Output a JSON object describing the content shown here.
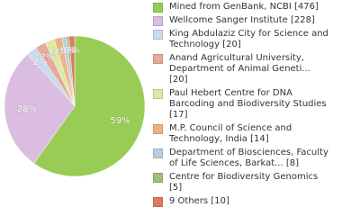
{
  "chart_data": {
    "type": "pie",
    "categories": [
      "Mined from GenBank, NCBI [476]",
      "Wellcome Sanger Institute [228]",
      "King Abdulaziz City for Science and Technology [20]",
      "Anand Agricultural University, Department of Animal Geneti... [20]",
      "Paul Hebert Centre for DNA Barcoding and Biodiversity Studies [17]",
      "M.P. Council of Science and Technology, India [14]",
      "Department of Biosciences, Faculty of Life Sciences, Barkat... [8]",
      "Centre for Biodiversity Genomics [5]",
      "9 Others [10]"
    ],
    "values": [
      59,
      28,
      2.4,
      2.4,
      2.1,
      1.8,
      1.0,
      0.6,
      1.3
    ],
    "value_labels": [
      "59%",
      "28%",
      "2%",
      "2%",
      "2%",
      "2%",
      "1%",
      "1%",
      "1%"
    ],
    "colors": [
      "#99cc55",
      "#dcbde2",
      "#c9dbec",
      "#e6a99c",
      "#dde8a2",
      "#f0b183",
      "#b9cde3",
      "#a2c07a",
      "#e07a5f"
    ],
    "legend": "right"
  }
}
